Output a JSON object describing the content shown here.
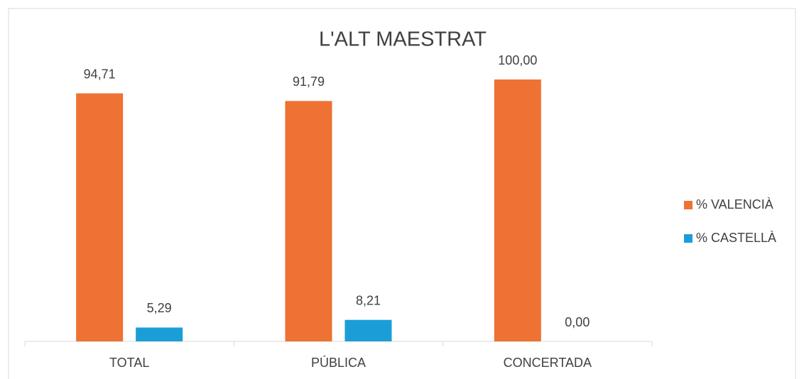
{
  "chart_data": {
    "type": "bar",
    "title": "L'ALT MAESTRAT",
    "categories": [
      "TOTAL",
      "PÚBLICA",
      "CONCERTADA"
    ],
    "series": [
      {
        "name": "% VALENCIÀ",
        "color": "#ed7233",
        "values": [
          94.71,
          91.79,
          100
        ],
        "value_labels": [
          "94,71",
          "91,79",
          "100,00"
        ]
      },
      {
        "name": "% CASTELLÀ",
        "color": "#1b9ed7",
        "values": [
          5.29,
          8.21,
          0
        ],
        "value_labels": [
          "5,29",
          "8,21",
          "0,00"
        ]
      }
    ],
    "ylim": [
      0,
      100
    ],
    "legend": "right"
  }
}
